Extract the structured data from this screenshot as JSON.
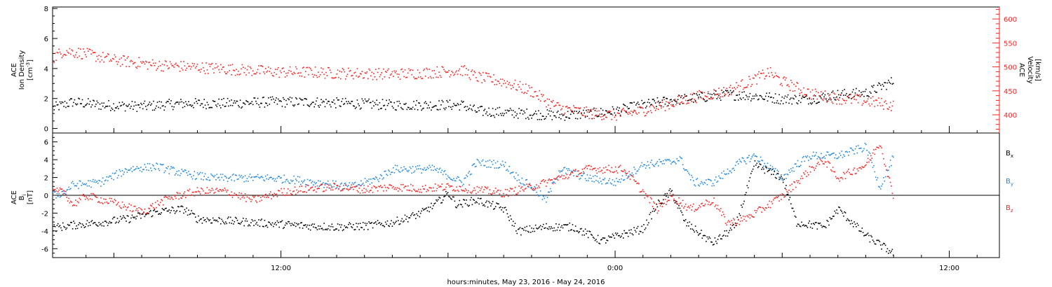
{
  "chart_data": [
    {
      "type": "scatter",
      "panel": "top",
      "xlabel": "hours:minutes, May 23, 2016 - May 24, 2016",
      "x_ticks": [
        {
          "hour": 12,
          "label": "12:00"
        },
        {
          "hour": 24,
          "label": "0:00"
        },
        {
          "hour": 36,
          "label": "12:00"
        }
      ],
      "xlim_hours": [
        3.8,
        37.8
      ],
      "ylabel_left": {
        "l1": "ACE",
        "l2": "Ion Density",
        "l3": "[cm",
        "sup": "-3",
        "close": "]"
      },
      "ylabel_right": {
        "l1": "ACE",
        "l2": "Velocity",
        "l3": "[km/s]"
      },
      "left_axis": {
        "ylim": [
          -0.3,
          8.1
        ],
        "ticks": [
          0,
          2,
          4,
          6,
          8
        ],
        "color": "#000000"
      },
      "right_axis": {
        "ylim": [
          362,
          625
        ],
        "ticks": [
          400,
          450,
          500,
          550,
          600
        ],
        "color": "#ff2020"
      },
      "series": [
        {
          "color": "#000000",
          "axis": "left",
          "points": [
            [
              3.8,
              1.4
            ],
            [
              4.5,
              1.8
            ],
            [
              5.5,
              1.6
            ],
            [
              7,
              1.5
            ],
            [
              8.5,
              1.7
            ],
            [
              10,
              1.7
            ],
            [
              11.5,
              1.8
            ],
            [
              13,
              1.8
            ],
            [
              14.5,
              1.7
            ],
            [
              16,
              1.6
            ],
            [
              17.5,
              1.6
            ],
            [
              18.5,
              1.6
            ],
            [
              19,
              1.2
            ],
            [
              20,
              1.1
            ],
            [
              21,
              1.0
            ],
            [
              22,
              0.9
            ],
            [
              23,
              1.0
            ],
            [
              24,
              1.2
            ],
            [
              25,
              1.6
            ],
            [
              26,
              1.9
            ],
            [
              27,
              2.1
            ],
            [
              28,
              2.3
            ],
            [
              29,
              2.2
            ],
            [
              30,
              2.0
            ],
            [
              31,
              2.0
            ],
            [
              32,
              2.3
            ],
            [
              33,
              2.4
            ],
            [
              34,
              3.2
            ]
          ]
        },
        {
          "color": "#ff2020",
          "axis": "right",
          "points": [
            [
              3.8,
              520
            ],
            [
              4.2,
              535
            ],
            [
              5,
              528
            ],
            [
              6,
              515
            ],
            [
              7.5,
              505
            ],
            [
              9,
              500
            ],
            [
              10.5,
              495
            ],
            [
              12,
              490
            ],
            [
              13,
              490
            ],
            [
              14,
              488
            ],
            [
              15,
              487
            ],
            [
              16,
              486
            ],
            [
              17,
              488
            ],
            [
              18,
              492
            ],
            [
              18.5,
              494
            ],
            [
              19,
              480
            ],
            [
              20,
              470
            ],
            [
              21,
              450
            ],
            [
              21.5,
              430
            ],
            [
              22,
              415
            ],
            [
              23,
              405
            ],
            [
              24,
              400
            ],
            [
              25,
              410
            ],
            [
              26,
              425
            ],
            [
              27,
              440
            ],
            [
              28,
              450
            ],
            [
              29,
              475
            ],
            [
              29.5,
              490
            ],
            [
              30,
              470
            ],
            [
              31,
              445
            ],
            [
              32,
              435
            ],
            [
              33,
              430
            ],
            [
              34,
              420
            ]
          ]
        }
      ]
    },
    {
      "type": "scatter",
      "panel": "bottom",
      "ylabel_left": {
        "l1": "ACE",
        "l2": "B",
        "l2sub": "i",
        "l3": "[nT]"
      },
      "ylim": [
        -7,
        7
      ],
      "ticks": [
        -6,
        -4,
        -2,
        0,
        2,
        4,
        6
      ],
      "series": [
        {
          "name": "B",
          "sub": "x",
          "color": "#000000",
          "points": [
            [
              3.8,
              -3.6
            ],
            [
              4.5,
              -3.3
            ],
            [
              5.5,
              -3.0
            ],
            [
              6.5,
              -2.6
            ],
            [
              7.5,
              -1.8
            ],
            [
              8.5,
              -1.5
            ],
            [
              9,
              -2.6
            ],
            [
              10,
              -2.8
            ],
            [
              11,
              -3.0
            ],
            [
              12,
              -3.2
            ],
            [
              13,
              -3.4
            ],
            [
              14,
              -3.5
            ],
            [
              15,
              -3.4
            ],
            [
              16,
              -3.0
            ],
            [
              17,
              -2.0
            ],
            [
              17.5,
              -1.0
            ],
            [
              18,
              0.3
            ],
            [
              18.3,
              -1.0
            ],
            [
              19,
              -0.5
            ],
            [
              20,
              -1.5
            ],
            [
              20.5,
              -4.0
            ],
            [
              21.5,
              -3.5
            ],
            [
              22.5,
              -3.5
            ],
            [
              23.5,
              -5.1
            ],
            [
              24.3,
              -4.3
            ],
            [
              25,
              -3.7
            ],
            [
              25.5,
              -1.0
            ],
            [
              26,
              0.5
            ],
            [
              26.5,
              -3.0
            ],
            [
              27.5,
              -5.3
            ],
            [
              28.3,
              -3.5
            ],
            [
              29,
              3.5
            ],
            [
              30,
              2.0
            ],
            [
              30.5,
              -3.0
            ],
            [
              31.5,
              -3.5
            ],
            [
              32,
              -1.5
            ],
            [
              32.5,
              -3.0
            ],
            [
              33,
              -4.5
            ],
            [
              33.5,
              -5.5
            ],
            [
              34,
              -6.5
            ]
          ]
        },
        {
          "name": "B",
          "sub": "y",
          "color": "#2288dd",
          "points": [
            [
              3.8,
              0.0
            ],
            [
              4.2,
              0.4
            ],
            [
              4.5,
              1.2
            ],
            [
              5.5,
              1.5
            ],
            [
              6.5,
              3.0
            ],
            [
              7.5,
              3.3
            ],
            [
              8.5,
              2.5
            ],
            [
              9.5,
              2.0
            ],
            [
              10.5,
              2.0
            ],
            [
              11.5,
              2.0
            ],
            [
              12.5,
              1.8
            ],
            [
              13.5,
              1.4
            ],
            [
              14.5,
              1.0
            ],
            [
              15,
              1.5
            ],
            [
              15.5,
              2.0
            ],
            [
              16,
              3.0
            ],
            [
              17,
              3.0
            ],
            [
              17.5,
              3.0
            ],
            [
              18.5,
              1.5
            ],
            [
              19,
              3.7
            ],
            [
              20,
              3.5
            ],
            [
              20.5,
              2.0
            ],
            [
              21,
              1.0
            ],
            [
              21.5,
              -0.5
            ],
            [
              22,
              3.0
            ],
            [
              23,
              2.0
            ],
            [
              24,
              1.5
            ],
            [
              25,
              3.5
            ],
            [
              26,
              3.8
            ],
            [
              26.3,
              4.2
            ],
            [
              26.8,
              1.5
            ],
            [
              27.5,
              1.5
            ],
            [
              28.5,
              3.8
            ],
            [
              29,
              4.5
            ],
            [
              30,
              2.0
            ],
            [
              30.5,
              3.5
            ],
            [
              31,
              4.5
            ],
            [
              32,
              4.5
            ],
            [
              33,
              5.5
            ],
            [
              33.5,
              1.0
            ],
            [
              34,
              4.5
            ]
          ]
        },
        {
          "name": "B",
          "sub": "z",
          "color": "#ff2020",
          "points": [
            [
              3.8,
              0.4
            ],
            [
              4.2,
              0.5
            ],
            [
              4.5,
              -1.0
            ],
            [
              5,
              0.0
            ],
            [
              6,
              -0.8
            ],
            [
              7,
              -1.8
            ],
            [
              8,
              -0.2
            ],
            [
              9,
              0.5
            ],
            [
              10,
              0.5
            ],
            [
              11,
              -0.5
            ],
            [
              12,
              0.4
            ],
            [
              13,
              0.8
            ],
            [
              14,
              1.0
            ],
            [
              15,
              0.7
            ],
            [
              16,
              1.0
            ],
            [
              17,
              0.8
            ],
            [
              18,
              1.0
            ],
            [
              19,
              0.7
            ],
            [
              20,
              0.3
            ],
            [
              21,
              1.0
            ],
            [
              22,
              2.0
            ],
            [
              23,
              3.0
            ],
            [
              24.3,
              3.0
            ],
            [
              24.7,
              1.5
            ],
            [
              25.5,
              -1.5
            ],
            [
              26,
              0.0
            ],
            [
              26.7,
              -1.5
            ],
            [
              27.5,
              -0.5
            ],
            [
              28,
              -3.0
            ],
            [
              28.5,
              -2.8
            ],
            [
              29,
              -2.0
            ],
            [
              30,
              0.0
            ],
            [
              30.5,
              1.5
            ],
            [
              31,
              3.0
            ],
            [
              31.5,
              4.0
            ],
            [
              32,
              2.0
            ],
            [
              33,
              3.5
            ],
            [
              33.5,
              6.0
            ],
            [
              34,
              -0.5
            ]
          ]
        }
      ],
      "legend": [
        {
          "name": "B",
          "sub": "x",
          "color": "#000000"
        },
        {
          "name": "B",
          "sub": "y",
          "color": "#2288dd"
        },
        {
          "name": "B",
          "sub": "z",
          "color": "#ff2020"
        }
      ]
    }
  ]
}
